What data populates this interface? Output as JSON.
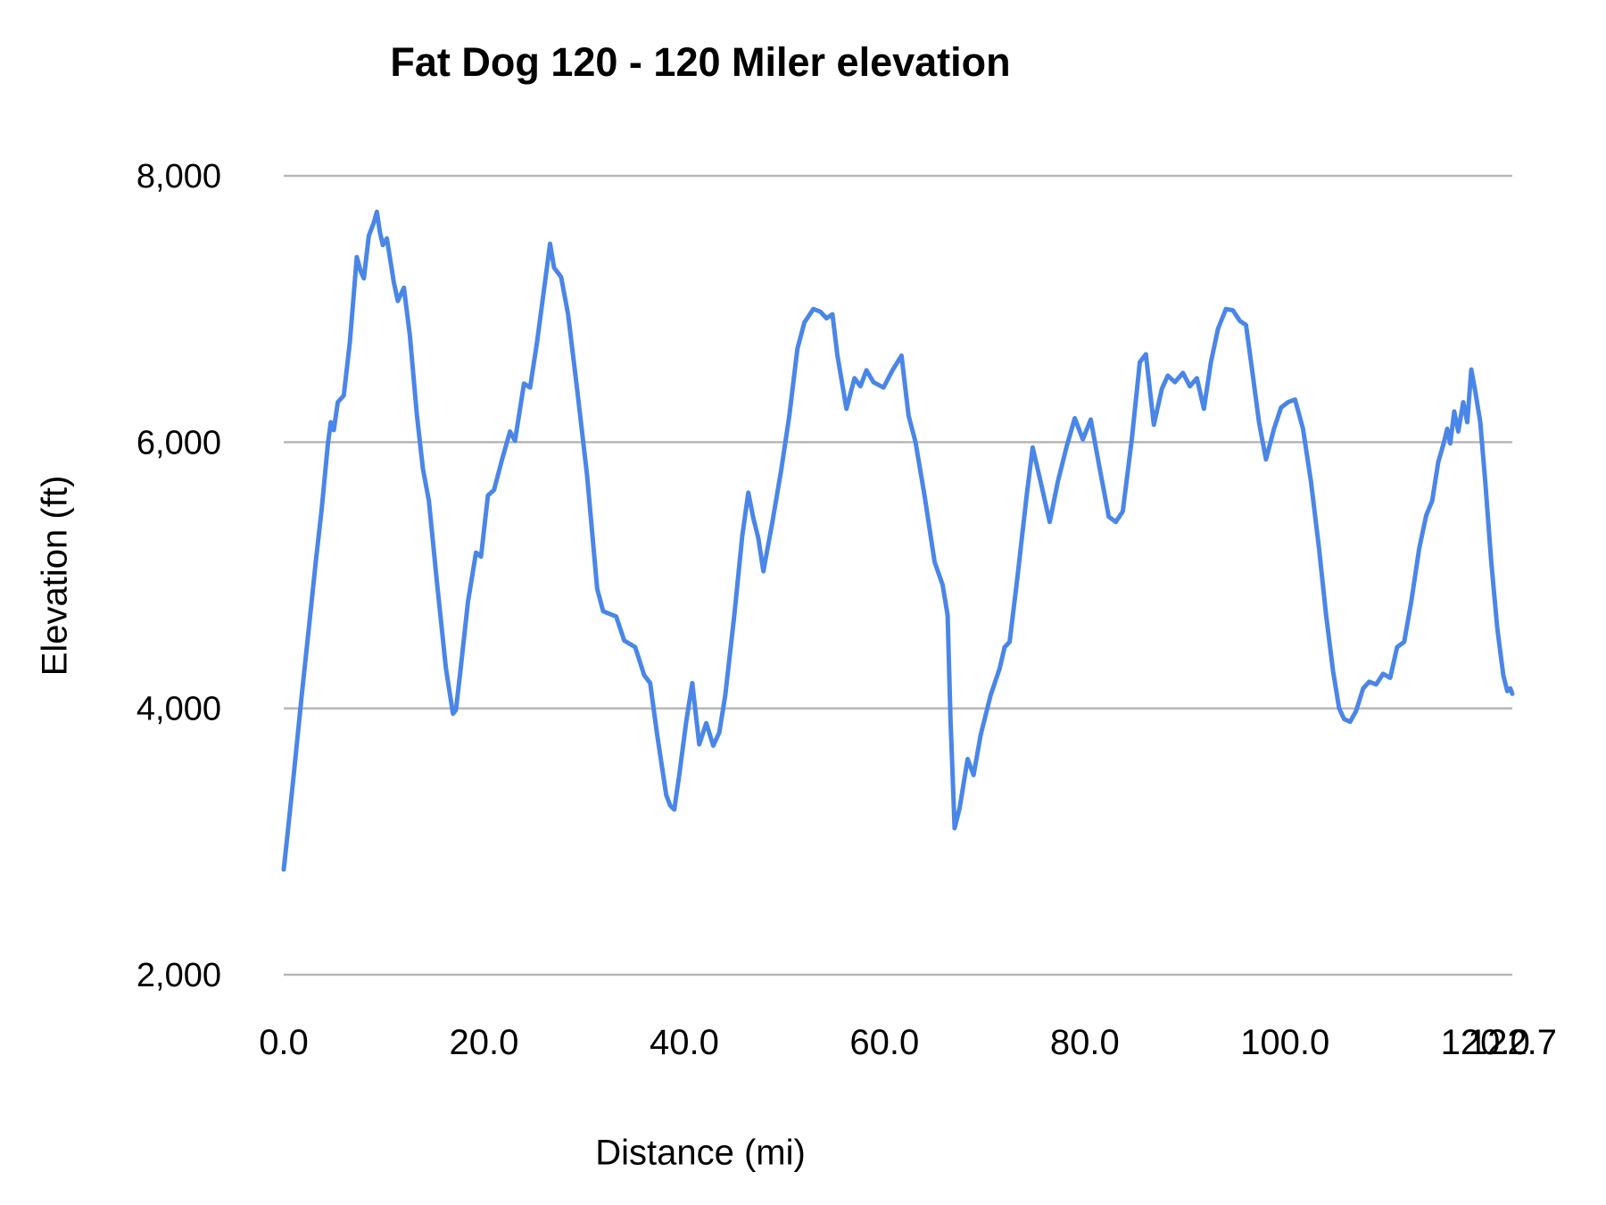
{
  "chart": {
    "title": "Fat Dog 120 - 120 Miler elevation",
    "background_color": "#ffffff",
    "colors": {
      "line": "#4a86e8",
      "grid": "#b7b7b7",
      "text": "#000000"
    },
    "x_axis": {
      "title": "Distance (mi)",
      "min": 0,
      "max": 122.7,
      "tick_values": [
        0,
        20,
        40,
        60,
        80,
        100,
        120,
        122.7
      ],
      "tick_labels": [
        "0.0",
        "20.0",
        "40.0",
        "60.0",
        "80.0",
        "100.0",
        "120.0",
        "122.7"
      ]
    },
    "y_axis": {
      "title": "Elevation (ft)",
      "min": 2000,
      "max": 8000,
      "tick_values": [
        2000,
        4000,
        6000,
        8000
      ],
      "tick_labels": [
        "2,000",
        "4,000",
        "6,000",
        "8,000"
      ]
    }
  },
  "chart_data": {
    "type": "line",
    "title": "Fat Dog 120 - 120 Miler elevation",
    "xlabel": "Distance (mi)",
    "ylabel": "Elevation (ft)",
    "xlim": [
      0,
      122.7
    ],
    "ylim": [
      2000,
      8000
    ],
    "grid": "horizontal-only",
    "legend": "none",
    "x_tick_labels": [
      "0.0",
      "20.0",
      "40.0",
      "60.0",
      "80.0",
      "100.0",
      "120.0",
      "122.7"
    ],
    "y_tick_labels": [
      "2,000",
      "4,000",
      "6,000",
      "8,000"
    ],
    "series": [
      {
        "name": "Elevation",
        "color": "#4a86e8",
        "points": [
          [
            0,
            2790
          ],
          [
            0.3,
            3000
          ],
          [
            1,
            3500
          ],
          [
            1.8,
            4100
          ],
          [
            2.5,
            4600
          ],
          [
            3.2,
            5100
          ],
          [
            3.8,
            5500
          ],
          [
            4.4,
            5980
          ],
          [
            4.7,
            6150
          ],
          [
            5,
            6090
          ],
          [
            5.4,
            6300
          ],
          [
            6,
            6350
          ],
          [
            6.6,
            6750
          ],
          [
            7.3,
            7390
          ],
          [
            7.7,
            7280
          ],
          [
            8,
            7230
          ],
          [
            8.5,
            7550
          ],
          [
            9,
            7650
          ],
          [
            9.3,
            7730
          ],
          [
            9.6,
            7580
          ],
          [
            9.9,
            7480
          ],
          [
            10.3,
            7530
          ],
          [
            11,
            7200
          ],
          [
            11.4,
            7060
          ],
          [
            12,
            7160
          ],
          [
            12.6,
            6800
          ],
          [
            13.3,
            6200
          ],
          [
            13.9,
            5800
          ],
          [
            14.5,
            5560
          ],
          [
            15.3,
            4950
          ],
          [
            16.2,
            4300
          ],
          [
            16.9,
            3960
          ],
          [
            17.2,
            3990
          ],
          [
            17.6,
            4250
          ],
          [
            18.4,
            4800
          ],
          [
            19.2,
            5170
          ],
          [
            19.7,
            5140
          ],
          [
            20.4,
            5600
          ],
          [
            21,
            5640
          ],
          [
            21.8,
            5870
          ],
          [
            22.6,
            6080
          ],
          [
            23.1,
            6010
          ],
          [
            24,
            6440
          ],
          [
            24.6,
            6410
          ],
          [
            25.3,
            6750
          ],
          [
            26,
            7150
          ],
          [
            26.6,
            7490
          ],
          [
            27,
            7310
          ],
          [
            27.7,
            7240
          ],
          [
            28.4,
            6960
          ],
          [
            29.3,
            6400
          ],
          [
            30.3,
            5750
          ],
          [
            31.3,
            4900
          ],
          [
            31.9,
            4730
          ],
          [
            33.2,
            4690
          ],
          [
            34,
            4510
          ],
          [
            35.1,
            4460
          ],
          [
            36,
            4250
          ],
          [
            36.6,
            4190
          ],
          [
            37.3,
            3800
          ],
          [
            38.2,
            3350
          ],
          [
            38.6,
            3270
          ],
          [
            39,
            3240
          ],
          [
            39.5,
            3500
          ],
          [
            40.2,
            3900
          ],
          [
            40.8,
            4190
          ],
          [
            41.5,
            3730
          ],
          [
            42.2,
            3890
          ],
          [
            42.9,
            3720
          ],
          [
            43.5,
            3820
          ],
          [
            44.1,
            4100
          ],
          [
            45,
            4700
          ],
          [
            45.8,
            5300
          ],
          [
            46.4,
            5620
          ],
          [
            46.9,
            5430
          ],
          [
            47.4,
            5280
          ],
          [
            47.9,
            5030
          ],
          [
            48.8,
            5400
          ],
          [
            49.7,
            5800
          ],
          [
            50.5,
            6200
          ],
          [
            51.3,
            6700
          ],
          [
            52,
            6900
          ],
          [
            52.9,
            7000
          ],
          [
            53.6,
            6980
          ],
          [
            54.2,
            6930
          ],
          [
            54.8,
            6960
          ],
          [
            55.3,
            6650
          ],
          [
            56.2,
            6250
          ],
          [
            57,
            6480
          ],
          [
            57.6,
            6420
          ],
          [
            58.2,
            6540
          ],
          [
            58.9,
            6450
          ],
          [
            59.9,
            6410
          ],
          [
            60.8,
            6540
          ],
          [
            61.7,
            6650
          ],
          [
            62.4,
            6200
          ],
          [
            63.1,
            6000
          ],
          [
            64,
            5600
          ],
          [
            65,
            5100
          ],
          [
            65.8,
            4930
          ],
          [
            66.3,
            4700
          ],
          [
            66.6,
            3900
          ],
          [
            66.8,
            3500
          ],
          [
            67,
            3100
          ],
          [
            67.5,
            3250
          ],
          [
            68.3,
            3620
          ],
          [
            68.9,
            3500
          ],
          [
            69.6,
            3800
          ],
          [
            70.6,
            4100
          ],
          [
            71.5,
            4300
          ],
          [
            72,
            4460
          ],
          [
            72.5,
            4500
          ],
          [
            73.3,
            5000
          ],
          [
            74.2,
            5600
          ],
          [
            74.8,
            5960
          ],
          [
            75.6,
            5700
          ],
          [
            76.5,
            5400
          ],
          [
            77.3,
            5700
          ],
          [
            78.2,
            5970
          ],
          [
            79,
            6180
          ],
          [
            79.8,
            6020
          ],
          [
            80.6,
            6170
          ],
          [
            81.5,
            5800
          ],
          [
            82.4,
            5440
          ],
          [
            83.1,
            5400
          ],
          [
            83.8,
            5480
          ],
          [
            84.7,
            6020
          ],
          [
            85.5,
            6600
          ],
          [
            86.1,
            6660
          ],
          [
            86.9,
            6130
          ],
          [
            87.7,
            6400
          ],
          [
            88.3,
            6500
          ],
          [
            89,
            6450
          ],
          [
            89.8,
            6520
          ],
          [
            90.5,
            6420
          ],
          [
            91.2,
            6480
          ],
          [
            91.9,
            6250
          ],
          [
            92.6,
            6600
          ],
          [
            93.3,
            6850
          ],
          [
            94.1,
            7000
          ],
          [
            94.8,
            6990
          ],
          [
            95.5,
            6910
          ],
          [
            96.1,
            6880
          ],
          [
            96.7,
            6550
          ],
          [
            97.4,
            6150
          ],
          [
            98.1,
            5870
          ],
          [
            98.9,
            6100
          ],
          [
            99.6,
            6260
          ],
          [
            100.3,
            6300
          ],
          [
            101,
            6320
          ],
          [
            101.8,
            6100
          ],
          [
            102.6,
            5700
          ],
          [
            103.4,
            5200
          ],
          [
            104.1,
            4700
          ],
          [
            104.8,
            4280
          ],
          [
            105.4,
            4000
          ],
          [
            105.9,
            3920
          ],
          [
            106.5,
            3900
          ],
          [
            107.1,
            3980
          ],
          [
            107.8,
            4150
          ],
          [
            108.4,
            4200
          ],
          [
            109.1,
            4180
          ],
          [
            109.8,
            4260
          ],
          [
            110.5,
            4230
          ],
          [
            111.2,
            4460
          ],
          [
            111.9,
            4500
          ],
          [
            112.6,
            4800
          ],
          [
            113.4,
            5200
          ],
          [
            114.1,
            5450
          ],
          [
            114.7,
            5560
          ],
          [
            115.3,
            5850
          ],
          [
            115.8,
            5980
          ],
          [
            116.2,
            6100
          ],
          [
            116.5,
            5990
          ],
          [
            116.9,
            6230
          ],
          [
            117.3,
            6080
          ],
          [
            117.8,
            6300
          ],
          [
            118.2,
            6150
          ],
          [
            118.6,
            6545
          ],
          [
            119,
            6380
          ],
          [
            119.5,
            6150
          ],
          [
            120,
            5700
          ],
          [
            120.6,
            5100
          ],
          [
            121.2,
            4600
          ],
          [
            121.8,
            4250
          ],
          [
            122.2,
            4130
          ],
          [
            122.5,
            4150
          ],
          [
            122.7,
            4110
          ]
        ]
      }
    ]
  }
}
